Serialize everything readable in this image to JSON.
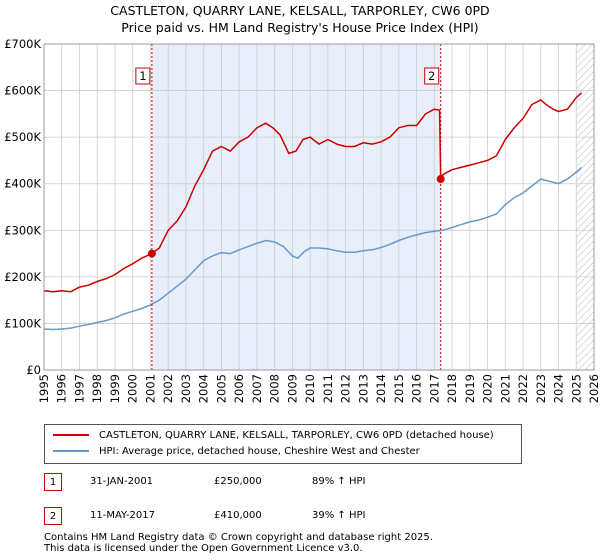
{
  "header": {
    "title_line1": "CASTLETON, QUARRY LANE, KELSALL, TARPORLEY, CW6 0PD",
    "title_line2": "Price paid vs. HM Land Registry's House Price Index (HPI)"
  },
  "chart_data": {
    "type": "line",
    "x_range": [
      1995,
      2026
    ],
    "y_range": [
      0,
      700000
    ],
    "y_ticks": [
      {
        "value": 0,
        "label": "£0"
      },
      {
        "value": 100000,
        "label": "£100K"
      },
      {
        "value": 200000,
        "label": "£200K"
      },
      {
        "value": 300000,
        "label": "£300K"
      },
      {
        "value": 400000,
        "label": "£400K"
      },
      {
        "value": 500000,
        "label": "£500K"
      },
      {
        "value": 600000,
        "label": "£600K"
      },
      {
        "value": 700000,
        "label": "£700K"
      }
    ],
    "x_ticks": [
      "1995",
      "1996",
      "1997",
      "1998",
      "1999",
      "2000",
      "2001",
      "2002",
      "2003",
      "2004",
      "2005",
      "2006",
      "2007",
      "2008",
      "2009",
      "2010",
      "2011",
      "2012",
      "2013",
      "2014",
      "2015",
      "2016",
      "2017",
      "2018",
      "2019",
      "2020",
      "2021",
      "2022",
      "2023",
      "2024",
      "2025",
      "2026"
    ],
    "shaded_span": [
      2001.08,
      2017.36
    ],
    "future_start": 2025.0,
    "series": [
      {
        "name": "CASTLETON, QUARRY LANE, KELSALL, TARPORLEY, CW6 0PD (detached house)",
        "color": "#cc0000",
        "x": [
          1995.0,
          1995.5,
          1996.0,
          1996.5,
          1997.0,
          1997.5,
          1998.0,
          1998.5,
          1999.0,
          1999.5,
          2000.0,
          2000.5,
          2001.08,
          2001.5,
          2002.0,
          2002.5,
          2003.0,
          2003.5,
          2004.0,
          2004.5,
          2005.0,
          2005.5,
          2006.0,
          2006.5,
          2007.0,
          2007.5,
          2007.9,
          2008.3,
          2008.8,
          2009.2,
          2009.6,
          2010.0,
          2010.5,
          2011.0,
          2011.5,
          2012.0,
          2012.5,
          2013.0,
          2013.5,
          2014.0,
          2014.5,
          2015.0,
          2015.5,
          2016.0,
          2016.5,
          2017.0,
          2017.3,
          2017.36,
          2017.5,
          2018.0,
          2018.5,
          2019.0,
          2019.5,
          2020.0,
          2020.5,
          2021.0,
          2021.5,
          2022.0,
          2022.5,
          2023.0,
          2023.3,
          2023.7,
          2024.0,
          2024.5,
          2025.0,
          2025.3
        ],
        "values": [
          170000,
          168000,
          170000,
          168000,
          178000,
          182000,
          190000,
          196000,
          205000,
          218000,
          228000,
          240000,
          250000,
          262000,
          300000,
          320000,
          350000,
          395000,
          430000,
          470000,
          480000,
          470000,
          490000,
          500000,
          520000,
          530000,
          520000,
          505000,
          465000,
          470000,
          495000,
          500000,
          485000,
          495000,
          485000,
          480000,
          480000,
          488000,
          485000,
          490000,
          500000,
          520000,
          525000,
          525000,
          550000,
          560000,
          558000,
          410000,
          420000,
          430000,
          435000,
          440000,
          445000,
          450000,
          460000,
          495000,
          520000,
          540000,
          570000,
          580000,
          570000,
          560000,
          555000,
          560000,
          585000,
          595000
        ]
      },
      {
        "name": "HPI: Average price, detached house, Cheshire West and Chester",
        "color": "#6699cc",
        "x": [
          1995.0,
          1995.5,
          1996.0,
          1996.5,
          1997.0,
          1997.5,
          1998.0,
          1998.5,
          1999.0,
          1999.5,
          2000.0,
          2000.5,
          2001.0,
          2001.5,
          2002.0,
          2002.5,
          2003.0,
          2003.5,
          2004.0,
          2004.5,
          2005.0,
          2005.5,
          2006.0,
          2006.5,
          2007.0,
          2007.5,
          2008.0,
          2008.5,
          2009.0,
          2009.3,
          2009.7,
          2010.0,
          2010.5,
          2011.0,
          2011.5,
          2012.0,
          2012.5,
          2013.0,
          2013.5,
          2014.0,
          2014.5,
          2015.0,
          2015.5,
          2016.0,
          2016.5,
          2017.0,
          2017.5,
          2018.0,
          2018.5,
          2019.0,
          2019.5,
          2020.0,
          2020.5,
          2021.0,
          2021.5,
          2022.0,
          2022.5,
          2023.0,
          2023.5,
          2024.0,
          2024.5,
          2025.0,
          2025.3
        ],
        "values": [
          88000,
          87000,
          88000,
          90000,
          94000,
          98000,
          102000,
          106000,
          112000,
          120000,
          126000,
          132000,
          140000,
          150000,
          165000,
          180000,
          195000,
          215000,
          235000,
          245000,
          252000,
          250000,
          258000,
          265000,
          272000,
          278000,
          275000,
          265000,
          245000,
          240000,
          255000,
          262000,
          262000,
          260000,
          256000,
          253000,
          253000,
          256000,
          258000,
          263000,
          270000,
          278000,
          285000,
          290000,
          295000,
          298000,
          300000,
          306000,
          312000,
          318000,
          322000,
          328000,
          335000,
          355000,
          370000,
          380000,
          395000,
          410000,
          405000,
          400000,
          410000,
          425000,
          435000
        ]
      }
    ],
    "sales": [
      {
        "marker": "1",
        "x": 2001.08,
        "value": 250000
      },
      {
        "marker": "2",
        "x": 2017.36,
        "value": 410000
      }
    ]
  },
  "legend": {
    "property_label": "CASTLETON, QUARRY LANE, KELSALL, TARPORLEY, CW6 0PD (detached house)",
    "hpi_label": "HPI: Average price, detached house, Cheshire West and Chester"
  },
  "sales_table": [
    {
      "marker": "1",
      "date": "31-JAN-2001",
      "price": "£250,000",
      "hpi": "89% ↑ HPI"
    },
    {
      "marker": "2",
      "date": "11-MAY-2017",
      "price": "£410,000",
      "hpi": "39% ↑ HPI"
    }
  ],
  "footer": {
    "line1": "Contains HM Land Registry data © Crown copyright and database right 2025.",
    "line2": "This data is licensed under the Open Government Licence v3.0."
  }
}
